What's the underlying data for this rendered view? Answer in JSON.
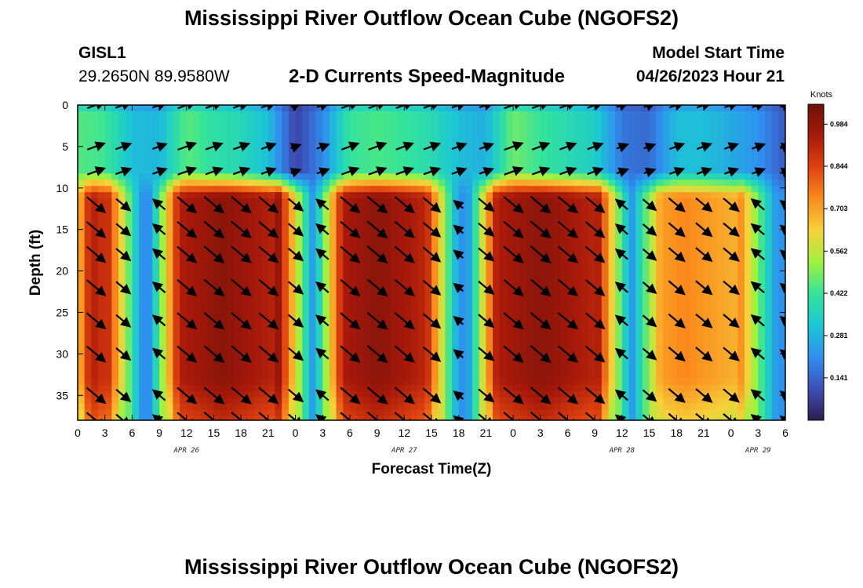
{
  "header": {
    "title": "Mississippi River Outflow Ocean Cube (NGOFS2)",
    "station_name": "GISL1",
    "station_coords": "29.2650N  89.9580W",
    "subtitle": "2-D Currents Speed-Magnitude",
    "model_start_label": "Model Start Time",
    "model_start_value": "04/26/2023 Hour 21"
  },
  "footer": {
    "repeated_title": "Mississippi River Outflow Ocean Cube (NGOFS2)"
  },
  "chart_data": {
    "type": "heatmap",
    "title": "2-D Currents Speed-Magnitude",
    "xlabel": "Forecast Time(Z)",
    "ylabel": "Depth (ft)",
    "xlim": [
      0,
      78
    ],
    "ylim": [
      0,
      38
    ],
    "y_inverted": true,
    "x_ticks": [
      0,
      3,
      6,
      9,
      12,
      15,
      18,
      21,
      24,
      27,
      30,
      33,
      36,
      39,
      42,
      45,
      48,
      51,
      54,
      57,
      60,
      63,
      66,
      69,
      72,
      75,
      78
    ],
    "x_tick_labels": [
      "0",
      "3",
      "6",
      "9",
      "12",
      "15",
      "18",
      "21",
      "0",
      "3",
      "6",
      "9",
      "12",
      "15",
      "18",
      "21",
      "0",
      "3",
      "6",
      "9",
      "12",
      "15",
      "18",
      "21",
      "0",
      "3",
      "6"
    ],
    "date_labels": [
      {
        "x": 12,
        "label": "APR 26"
      },
      {
        "x": 36,
        "label": "APR 27"
      },
      {
        "x": 60,
        "label": "APR 28"
      },
      {
        "x": 75,
        "label": "APR 29"
      }
    ],
    "y_ticks": [
      0,
      5,
      10,
      15,
      20,
      25,
      30,
      35
    ],
    "y_tick_labels": [
      "0",
      "5",
      "10",
      "15",
      "20",
      "25",
      "30",
      "35"
    ],
    "colorbar": {
      "title": "Knots",
      "min": 0.0,
      "max": 1.05,
      "ticks": [
        0.141,
        0.281,
        0.422,
        0.562,
        0.703,
        0.844,
        0.984
      ],
      "tick_labels": [
        "0.141",
        "0.281",
        "0.422",
        "0.562",
        "0.703",
        "0.844",
        "0.984"
      ],
      "colors": [
        "#2d1e4e",
        "#3d4fb8",
        "#2f8ff0",
        "#1bc7d3",
        "#34e39a",
        "#9ff23f",
        "#f6d13a",
        "#fb8c1d",
        "#e0430f",
        "#a8190a",
        "#6e1108"
      ]
    },
    "surface_layer": {
      "depth_range": [
        0,
        8
      ],
      "speed_by_time": [
        {
          "t": 0,
          "v": 0.45
        },
        {
          "t": 3,
          "v": 0.43
        },
        {
          "t": 6,
          "v": 0.3
        },
        {
          "t": 9,
          "v": 0.28
        },
        {
          "t": 12,
          "v": 0.46
        },
        {
          "t": 15,
          "v": 0.4
        },
        {
          "t": 18,
          "v": 0.37
        },
        {
          "t": 21,
          "v": 0.3
        },
        {
          "t": 24,
          "v": 0.08
        },
        {
          "t": 27,
          "v": 0.2
        },
        {
          "t": 30,
          "v": 0.42
        },
        {
          "t": 33,
          "v": 0.44
        },
        {
          "t": 36,
          "v": 0.42
        },
        {
          "t": 39,
          "v": 0.38
        },
        {
          "t": 42,
          "v": 0.3
        },
        {
          "t": 45,
          "v": 0.27
        },
        {
          "t": 48,
          "v": 0.48
        },
        {
          "t": 51,
          "v": 0.42
        },
        {
          "t": 54,
          "v": 0.38
        },
        {
          "t": 57,
          "v": 0.34
        },
        {
          "t": 60,
          "v": 0.17
        },
        {
          "t": 63,
          "v": 0.15
        },
        {
          "t": 66,
          "v": 0.3
        },
        {
          "t": 69,
          "v": 0.3
        },
        {
          "t": 72,
          "v": 0.26
        },
        {
          "t": 75,
          "v": 0.22
        },
        {
          "t": 78,
          "v": 0.12
        }
      ]
    },
    "deep_layer": {
      "depth_range": [
        9,
        38
      ],
      "ebb_pulses": [
        {
          "start": 0,
          "peak": 1,
          "end": 5,
          "max_speed": 0.95
        },
        {
          "start": 10,
          "peak": 16,
          "end": 24,
          "max_speed": 1.0
        },
        {
          "start": 28,
          "peak": 33,
          "end": 40,
          "max_speed": 1.0
        },
        {
          "start": 45,
          "peak": 51,
          "end": 59,
          "max_speed": 1.0
        },
        {
          "start": 63,
          "peak": 67,
          "end": 75,
          "max_speed": 0.74
        }
      ]
    },
    "current_vectors": {
      "x_positions": [
        2,
        5,
        9,
        12,
        15,
        18,
        21,
        24,
        27,
        30,
        33,
        36,
        39,
        42,
        45,
        48,
        51,
        54,
        57,
        60,
        63,
        66,
        69,
        72,
        75,
        78
      ],
      "depths": [
        0,
        5,
        8,
        12,
        15,
        18,
        22,
        26,
        30,
        35,
        38
      ],
      "surface_direction_deg": 20,
      "deep_ebb_direction_deg": -40,
      "deep_flood_direction_deg": 140
    }
  }
}
